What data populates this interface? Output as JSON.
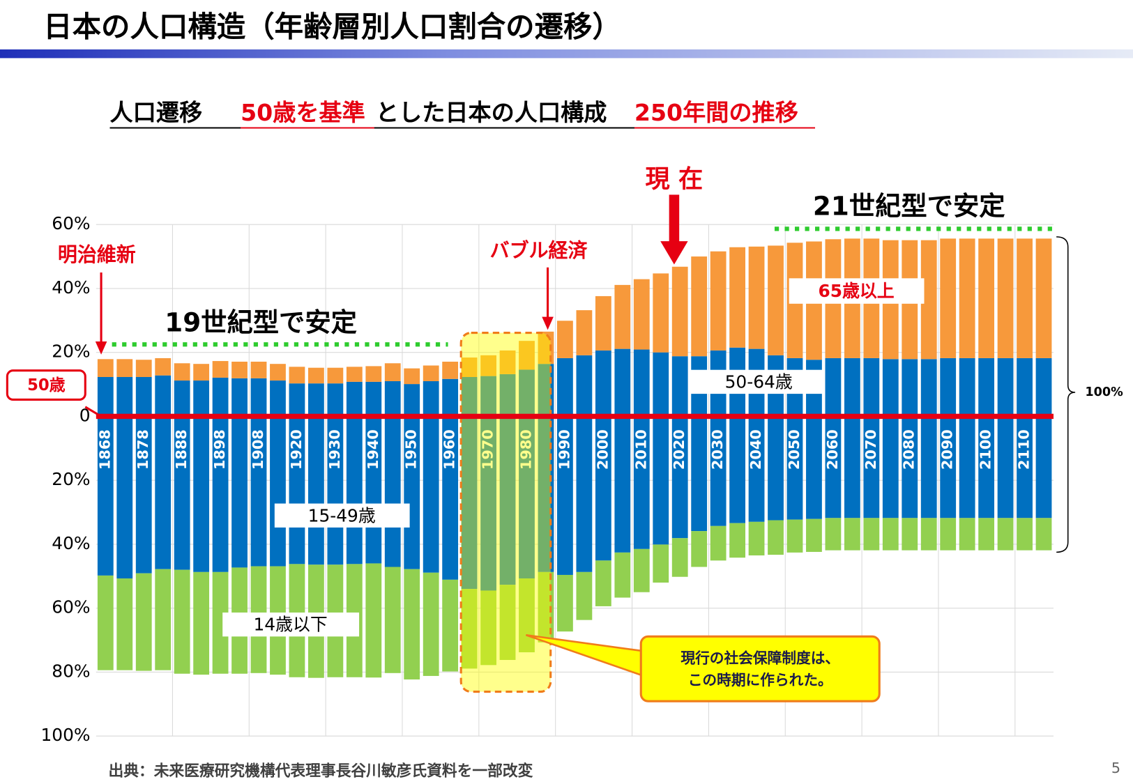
{
  "chart_data": {
    "type": "diverging-stacked-bar",
    "title": "日本の人口構造（年齢層別人口割合の遷移）",
    "subtitle": [
      "人口遷移",
      "50歳を基準",
      "とした日本の人口構成",
      "250年間の推移"
    ],
    "annotations": {
      "now": "現 在",
      "c21": "21世紀型で安定",
      "meiji": "明治維新",
      "bubble": "バブル経済",
      "c19": "19世紀型で安定",
      "base": "50歳",
      "total": "100%",
      "callout": [
        "現行の社会保障制度は、",
        "この時期に作られた。"
      ]
    },
    "source": "出典：未来医療研究機構代表理事長谷川敏彦氏資料を一部改変",
    "page_number": "5",
    "categories": [
      "1868",
      null,
      "1878",
      null,
      "1888",
      null,
      "1898",
      null,
      "1908",
      null,
      "1920",
      null,
      "1930",
      null,
      "1940",
      null,
      "1950",
      null,
      "1960",
      null,
      "1970",
      null,
      "1980",
      null,
      "1990",
      null,
      "2000",
      null,
      "2010",
      null,
      "2020",
      null,
      "2030",
      null,
      "2040",
      null,
      "2050",
      null,
      "2060",
      null,
      "2070",
      null,
      "2080",
      null,
      "2090",
      null,
      "2100",
      null,
      "2110",
      null
    ],
    "series": [
      {
        "name": "50-64歳",
        "color": "#0070c0",
        "values": [
          12.3,
          12.3,
          12.3,
          12.8,
          11.2,
          11.2,
          12.1,
          11.9,
          11.9,
          11.2,
          10.3,
          10.3,
          10.3,
          10.8,
          10.8,
          11.0,
          10.1,
          11.0,
          11.7,
          12.3,
          12.6,
          13.2,
          14.6,
          16.4,
          18.2,
          19.1,
          20.6,
          21.1,
          20.9,
          20.0,
          18.8,
          18.8,
          20.6,
          21.5,
          21.1,
          19.1,
          18.2,
          17.7,
          18.2,
          18.2,
          18.2,
          17.9,
          17.9,
          17.9,
          18.2,
          18.2,
          18.2,
          18.2,
          18.2,
          18.2
        ]
      },
      {
        "name": "65歳以上",
        "color": "#f7993b",
        "values": [
          5.6,
          5.6,
          5.4,
          5.4,
          5.4,
          5.2,
          5.2,
          5.2,
          5.2,
          5.2,
          5.2,
          4.9,
          4.9,
          4.7,
          4.9,
          5.6,
          4.9,
          4.9,
          5.4,
          6.1,
          6.5,
          7.4,
          9.0,
          10.1,
          11.7,
          14.1,
          17.0,
          20.0,
          22.0,
          24.7,
          28.0,
          31.2,
          31.0,
          31.4,
          32.0,
          34.3,
          36.1,
          37.0,
          37.2,
          37.4,
          37.4,
          37.2,
          37.2,
          37.2,
          37.4,
          37.4,
          37.4,
          37.4,
          37.4,
          37.4
        ]
      },
      {
        "name": "15-49歳",
        "color": "#0070c0",
        "values": [
          -49.8,
          -50.7,
          -49.1,
          -47.8,
          -48.0,
          -48.7,
          -48.7,
          -47.3,
          -46.9,
          -46.9,
          -46.2,
          -46.4,
          -46.4,
          -46.2,
          -46.0,
          -47.1,
          -47.8,
          -48.9,
          -51.1,
          -54.0,
          -54.5,
          -52.7,
          -50.7,
          -48.7,
          -49.6,
          -48.7,
          -45.1,
          -42.6,
          -41.5,
          -40.1,
          -38.1,
          -35.9,
          -34.3,
          -33.4,
          -33.0,
          -32.5,
          -32.3,
          -32.1,
          -31.8,
          -31.8,
          -31.8,
          -31.8,
          -31.8,
          -31.8,
          -31.8,
          -31.8,
          -31.8,
          -31.8,
          -31.8,
          -31.8
        ]
      },
      {
        "name": "14歳以下",
        "color": "#92d050",
        "values": [
          -29.6,
          -28.7,
          -30.5,
          -31.6,
          -32.5,
          -32.1,
          -31.8,
          -33.2,
          -33.4,
          -33.9,
          -35.4,
          -35.4,
          -35.2,
          -35.4,
          -35.7,
          -33.2,
          -34.5,
          -32.3,
          -28.7,
          -24.9,
          -23.3,
          -23.5,
          -23.1,
          -22.0,
          -17.7,
          -15.0,
          -14.3,
          -14.1,
          -13.5,
          -11.9,
          -12.1,
          -11.2,
          -10.8,
          -10.8,
          -10.5,
          -10.8,
          -10.3,
          -10.3,
          -10.1,
          -10.1,
          -10.1,
          -10.1,
          -10.1,
          -10.1,
          -10.1,
          -10.1,
          -10.1,
          -10.1,
          -10.1,
          -10.1
        ]
      }
    ],
    "ylim": [
      -100,
      60
    ],
    "yticks": [
      {
        "value": 60,
        "label": "60%"
      },
      {
        "value": 40,
        "label": "40%"
      },
      {
        "value": 20,
        "label": "20%"
      },
      0,
      {
        "value": -20,
        "label": "20%"
      },
      {
        "value": -40,
        "label": "40%"
      },
      {
        "value": -60,
        "label": "60%"
      },
      {
        "value": -80,
        "label": "80%"
      },
      {
        "value": -100,
        "label": "100%"
      }
    ],
    "grid": true
  }
}
